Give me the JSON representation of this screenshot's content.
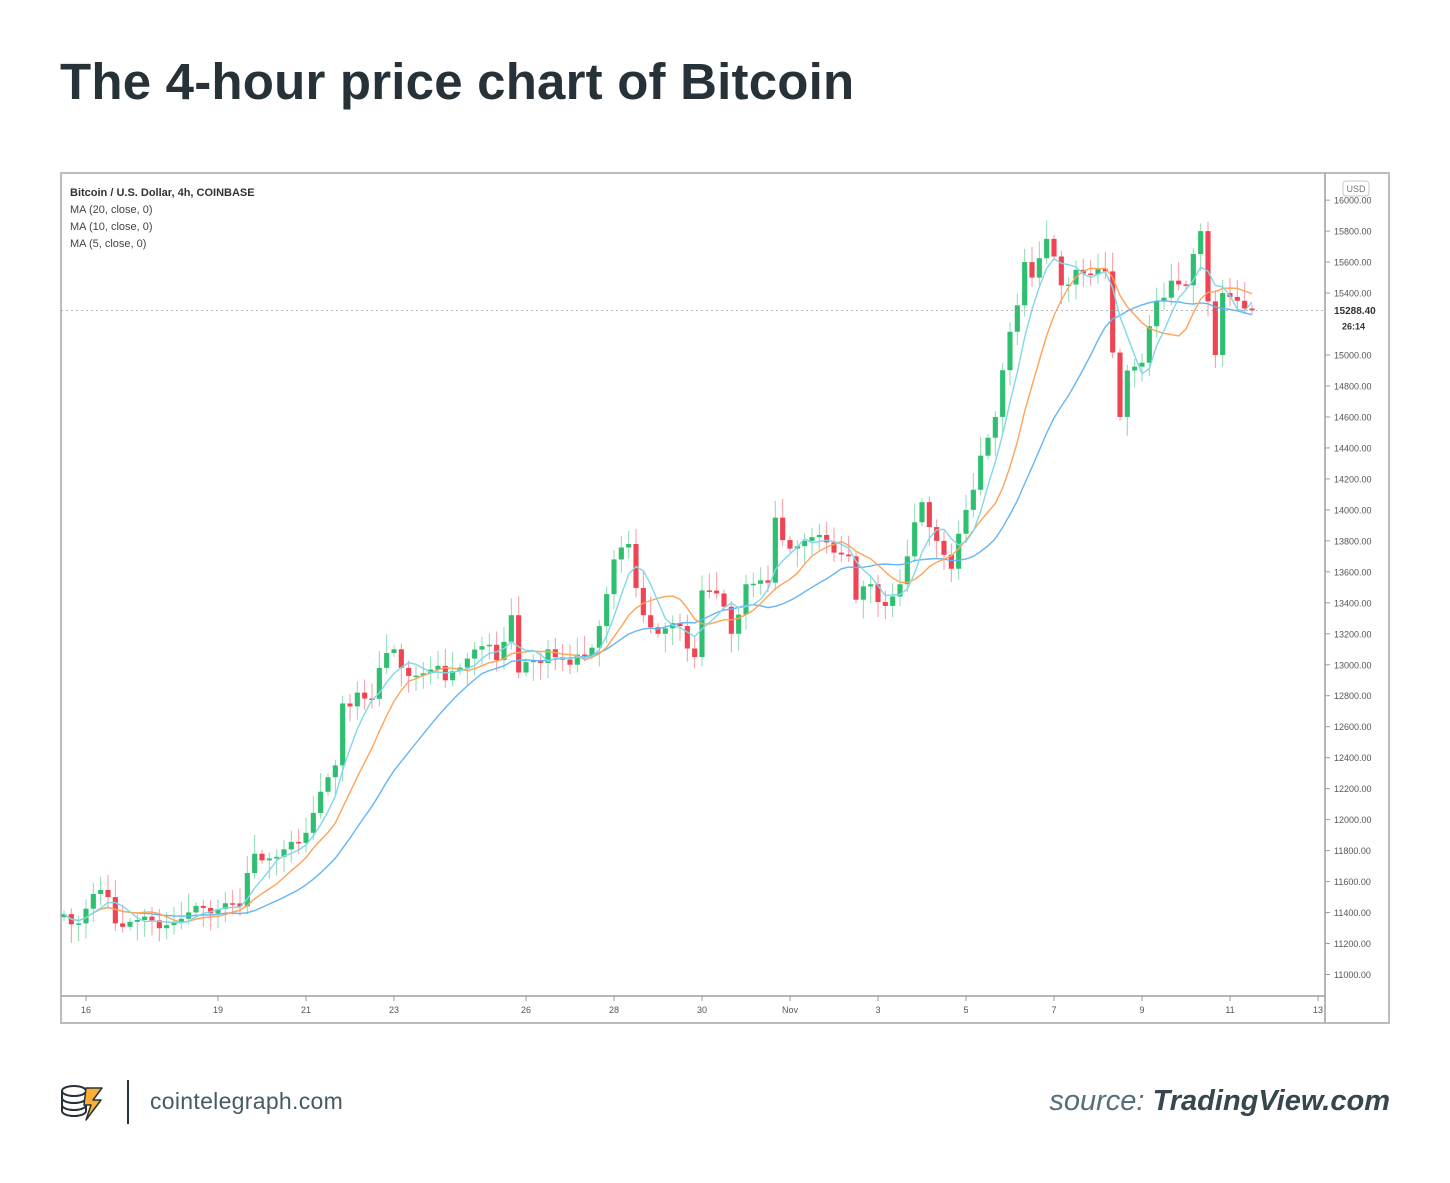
{
  "title": "The 4-hour price chart of Bitcoin",
  "footer": {
    "site": "cointelegraph.com",
    "source_label": "source:",
    "source_name": "TradingView.com",
    "logo_icon": "cointelegraph-logo-icon"
  },
  "colors": {
    "up": "#26a69a",
    "up_candle": "#2fbf71",
    "down": "#ef4453",
    "ma20": "#64b5f6",
    "ma10": "#ffa25a",
    "ma5": "#7fd8e6",
    "text": "#263238",
    "axis_text": "#555555",
    "frame": "#bdbdbd"
  },
  "chart_data": {
    "type": "candlestick",
    "legend": {
      "symbol": "Bitcoin / U.S. Dollar, 4h, COINBASE",
      "indicators": [
        "MA (20, close, 0)",
        "MA (10, close, 0)",
        "MA (5, close, 0)"
      ]
    },
    "currency": "USD",
    "last_price": "15288.40",
    "countdown": "26:14",
    "xlim": [
      0,
      171
    ],
    "ylim": [
      10900,
      16130
    ],
    "y_ticks": [
      16000,
      15800,
      15600,
      15400,
      15000,
      14800,
      14600,
      14400,
      14200,
      14000,
      13800,
      13600,
      13400,
      13200,
      13000,
      12800,
      12600,
      12400,
      12200,
      12000,
      11800,
      11600,
      11400,
      11200,
      11000
    ],
    "y_tick_labels": [
      "16000.00",
      "15800.00",
      "15600.00",
      "15400.00",
      "15000.00",
      "14800.00",
      "14600.00",
      "14400.00",
      "14200.00",
      "14000.00",
      "13800.00",
      "13600.00",
      "13400.00",
      "13200.00",
      "13000.00",
      "12800.00",
      "12600.00",
      "12400.00",
      "12200.00",
      "12000.00",
      "11800.00",
      "11600.00",
      "11400.00",
      "11200.00",
      "11000.00"
    ],
    "x_ticks": [
      {
        "label": "16",
        "x": 3
      },
      {
        "label": "19",
        "x": 21
      },
      {
        "label": "21",
        "x": 33
      },
      {
        "label": "23",
        "x": 45
      },
      {
        "label": "26",
        "x": 63
      },
      {
        "label": "28",
        "x": 75
      },
      {
        "label": "30",
        "x": 87
      },
      {
        "label": "Nov",
        "x": 99
      },
      {
        "label": "3",
        "x": 111
      },
      {
        "label": "5",
        "x": 123
      },
      {
        "label": "7",
        "x": 135
      },
      {
        "label": "9",
        "x": 147
      },
      {
        "label": "11",
        "x": 159
      },
      {
        "label": "13",
        "x": 171
      }
    ],
    "close_anchors": [
      [
        0,
        11390
      ],
      [
        2,
        11330
      ],
      [
        4,
        11520
      ],
      [
        6,
        11500
      ],
      [
        7,
        11330
      ],
      [
        9,
        11340
      ],
      [
        12,
        11350
      ],
      [
        16,
        11360
      ],
      [
        19,
        11430
      ],
      [
        22,
        11460
      ],
      [
        24,
        11440
      ],
      [
        26,
        11780
      ],
      [
        29,
        11760
      ],
      [
        32,
        11850
      ],
      [
        35,
        12180
      ],
      [
        37,
        12350
      ],
      [
        38,
        12750
      ],
      [
        40,
        12820
      ],
      [
        42,
        12780
      ],
      [
        43,
        12980
      ],
      [
        45,
        13100
      ],
      [
        46,
        12980
      ],
      [
        48,
        12930
      ],
      [
        53,
        12960
      ],
      [
        57,
        13120
      ],
      [
        59,
        13030
      ],
      [
        61,
        13320
      ],
      [
        62,
        12950
      ],
      [
        64,
        13030
      ],
      [
        66,
        13100
      ],
      [
        69,
        13000
      ],
      [
        71,
        13060
      ],
      [
        73,
        13250
      ],
      [
        75,
        13680
      ],
      [
        77,
        13780
      ],
      [
        79,
        13320
      ],
      [
        81,
        13200
      ],
      [
        84,
        13250
      ],
      [
        86,
        13050
      ],
      [
        87,
        13480
      ],
      [
        89,
        13460
      ],
      [
        91,
        13200
      ],
      [
        93,
        13520
      ],
      [
        96,
        13530
      ],
      [
        97,
        13950
      ],
      [
        99,
        13750
      ],
      [
        101,
        13800
      ],
      [
        104,
        13790
      ],
      [
        107,
        13700
      ],
      [
        108,
        13420
      ],
      [
        110,
        13520
      ],
      [
        112,
        13380
      ],
      [
        114,
        13520
      ],
      [
        115,
        13700
      ],
      [
        117,
        14050
      ],
      [
        119,
        13800
      ],
      [
        121,
        13620
      ],
      [
        123,
        14000
      ],
      [
        125,
        14350
      ],
      [
        127,
        14600
      ],
      [
        129,
        15150
      ],
      [
        131,
        15600
      ],
      [
        132,
        15500
      ],
      [
        134,
        15750
      ],
      [
        136,
        15450
      ],
      [
        138,
        15550
      ],
      [
        140,
        15520
      ],
      [
        142,
        15540
      ],
      [
        144,
        14600
      ],
      [
        145,
        14900
      ],
      [
        147,
        14950
      ],
      [
        149,
        15350
      ],
      [
        151,
        15480
      ],
      [
        153,
        15450
      ],
      [
        155,
        15800
      ],
      [
        157,
        15000
      ],
      [
        158,
        15400
      ],
      [
        160,
        15350
      ],
      [
        161,
        15300
      ],
      [
        162,
        15288
      ]
    ]
  }
}
